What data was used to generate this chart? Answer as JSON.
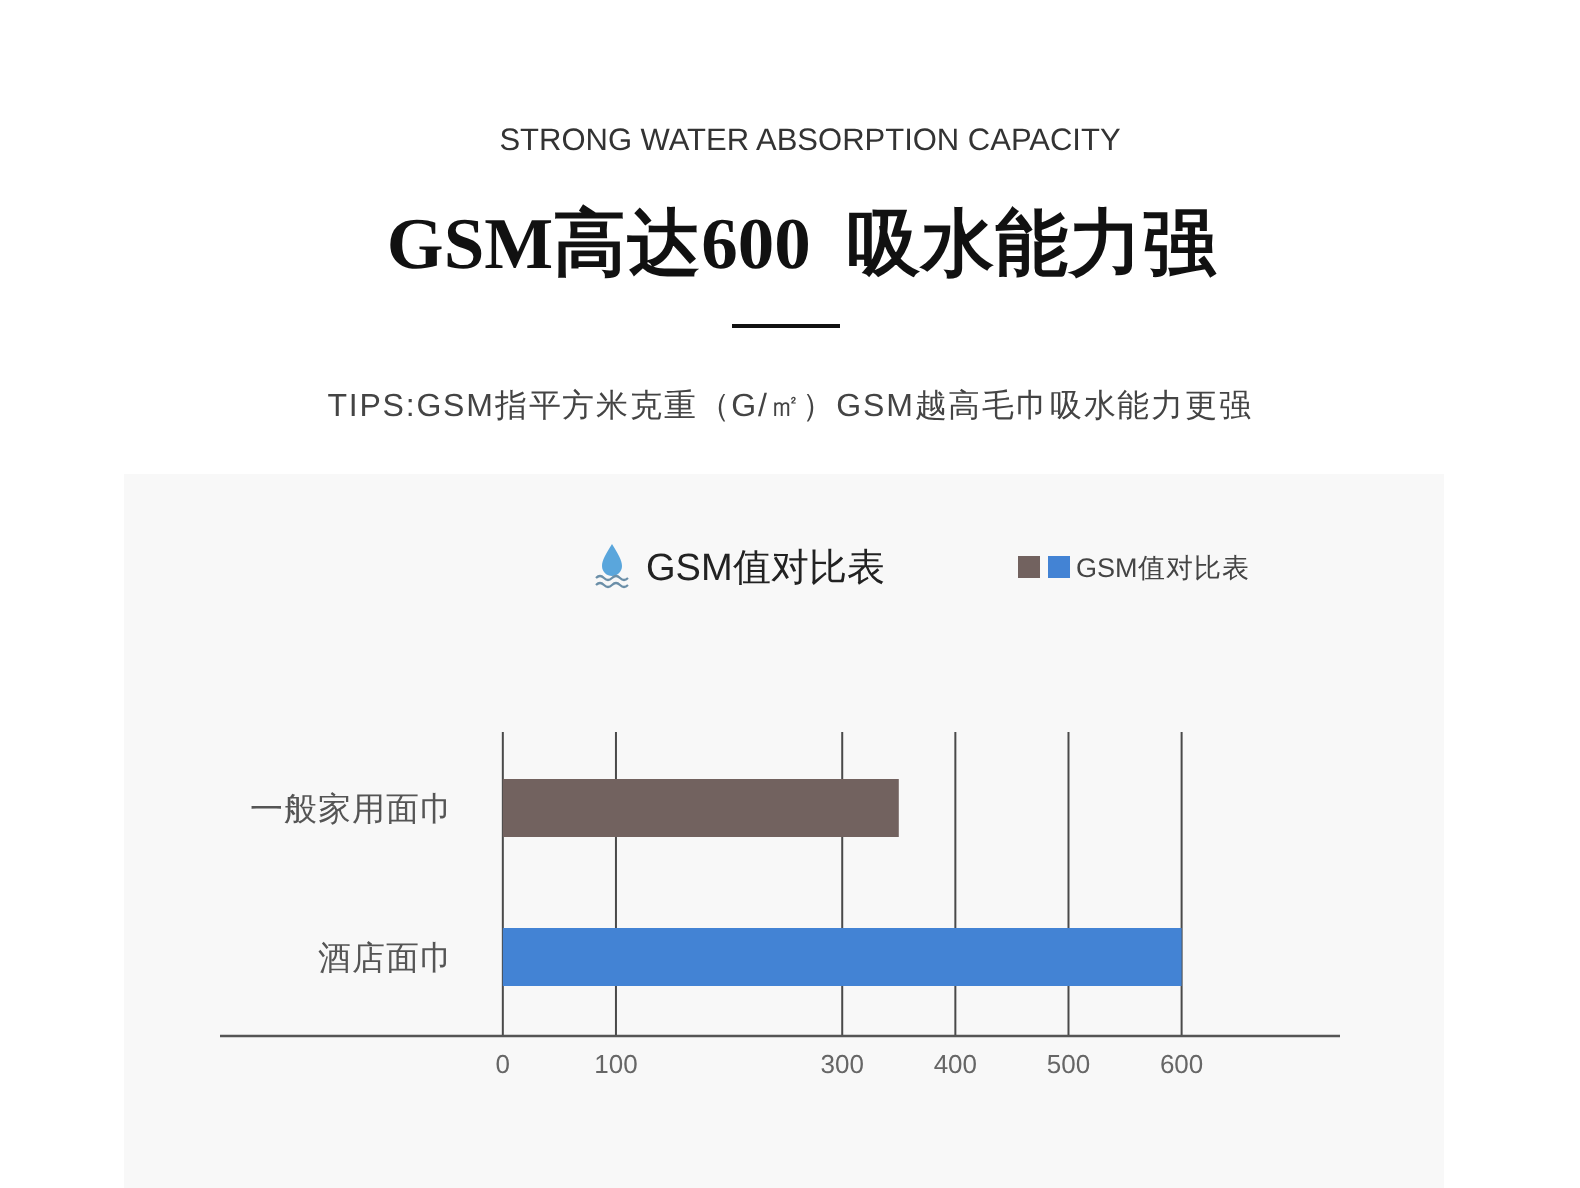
{
  "chart_data": {
    "type": "bar",
    "orientation": "horizontal",
    "title": "GSM高达600  吸水能力强",
    "subtitle": "STRONG WATER ABSORPTION CAPACITY",
    "annotations": [
      "TIPS:GSM指平方米克重（G/㎡）GSM越高毛巾吸水能力更强",
      "GSM值对比表"
    ],
    "categories": [
      "一般家用面巾",
      "酒店面巾"
    ],
    "series": [
      {
        "name": "GSM值对比表",
        "colors": [
          "#72625f",
          "#4383d4"
        ],
        "values": [
          350,
          600
        ]
      }
    ],
    "xlim": [
      -250,
      740
    ],
    "xticks": [
      0,
      100,
      300,
      400,
      500,
      600
    ],
    "grid": "x",
    "legend": "top right"
  }
}
